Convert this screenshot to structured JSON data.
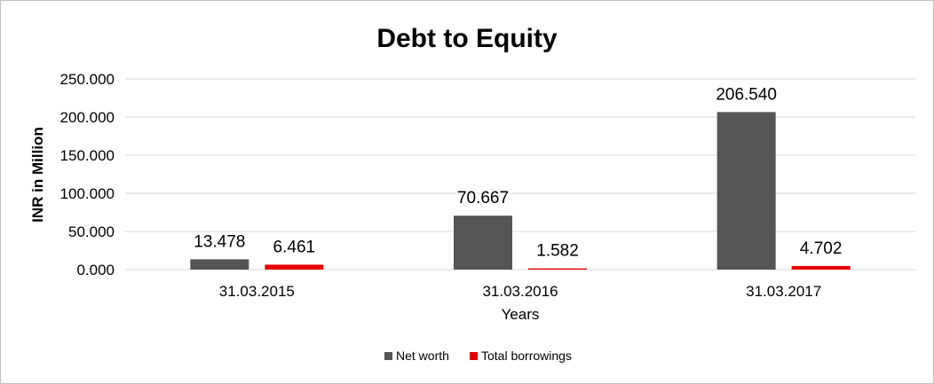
{
  "chart_data": {
    "type": "bar",
    "title": "Debt to Equity",
    "xlabel": "Years",
    "ylabel": "INR in Million",
    "categories": [
      "31.03.2015",
      "31.03.2016",
      "31.03.2017"
    ],
    "series": [
      {
        "name": "Net worth",
        "color": "#555555",
        "values": [
          13.478,
          70.667,
          206.54
        ],
        "labels": [
          "13.478",
          "70.667",
          "206.540"
        ]
      },
      {
        "name": "Total borrowings",
        "color": "#e60000",
        "values": [
          6.461,
          1.582,
          4.702
        ],
        "labels": [
          "6.461",
          "1.582",
          "4.702"
        ]
      }
    ],
    "ylim": [
      0,
      250
    ],
    "yticks": [
      0,
      50,
      100,
      150,
      200,
      250
    ],
    "ytick_labels": [
      "0.000",
      "50.000",
      "100.000",
      "150.000",
      "200.000",
      "250.000"
    ],
    "grid": true,
    "legend_position": "bottom"
  }
}
